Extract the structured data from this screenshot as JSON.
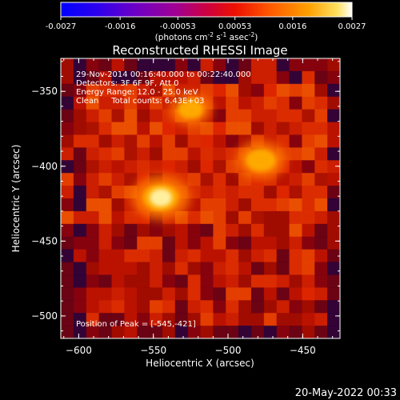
{
  "chart_data": {
    "type": "heatmap",
    "title": "Reconstructed RHESSI Image",
    "xlabel": "Heliocentric X (arcsec)",
    "ylabel": "Heliocentric Y (arcsec)",
    "xlim": [
      -612,
      -425
    ],
    "ylim": [
      -515,
      -328
    ],
    "x_ticks": [
      -600,
      -550,
      -500,
      -450
    ],
    "y_ticks": [
      -350,
      -400,
      -450,
      -500
    ],
    "colorbar": {
      "range": [
        -0.0027,
        0.0027
      ],
      "ticks": [
        "-0.0027",
        "-0.0016",
        "-0.00053",
        "0.00053",
        "0.0016",
        "0.0027"
      ],
      "label": "(photons cm<sup>-2</sup> s<sup>-1</sup> asec<sup>-2</sup>)",
      "label_plain": "(photons cm-2 s-1 asec-2)"
    },
    "annotations": [
      "29-Nov-2014 00:16:40.000 to 00:22:40.000",
      "Detectors: 3F 6F 9F, Att 0",
      "Energy Range: 12.0 - 25.0 keV",
      "Clean     Total counts: 6.43E+03"
    ],
    "peak_label": "Position of Peak = [-545,-421]",
    "peak": [
      -545,
      -421
    ],
    "sources": [
      {
        "x": -545,
        "y": -421,
        "level": 1.0
      },
      {
        "x": -478,
        "y": -396,
        "level": 0.75
      },
      {
        "x": -525,
        "y": -362,
        "level": 0.55
      }
    ],
    "footer_date": "20-May-2022 00:33"
  }
}
